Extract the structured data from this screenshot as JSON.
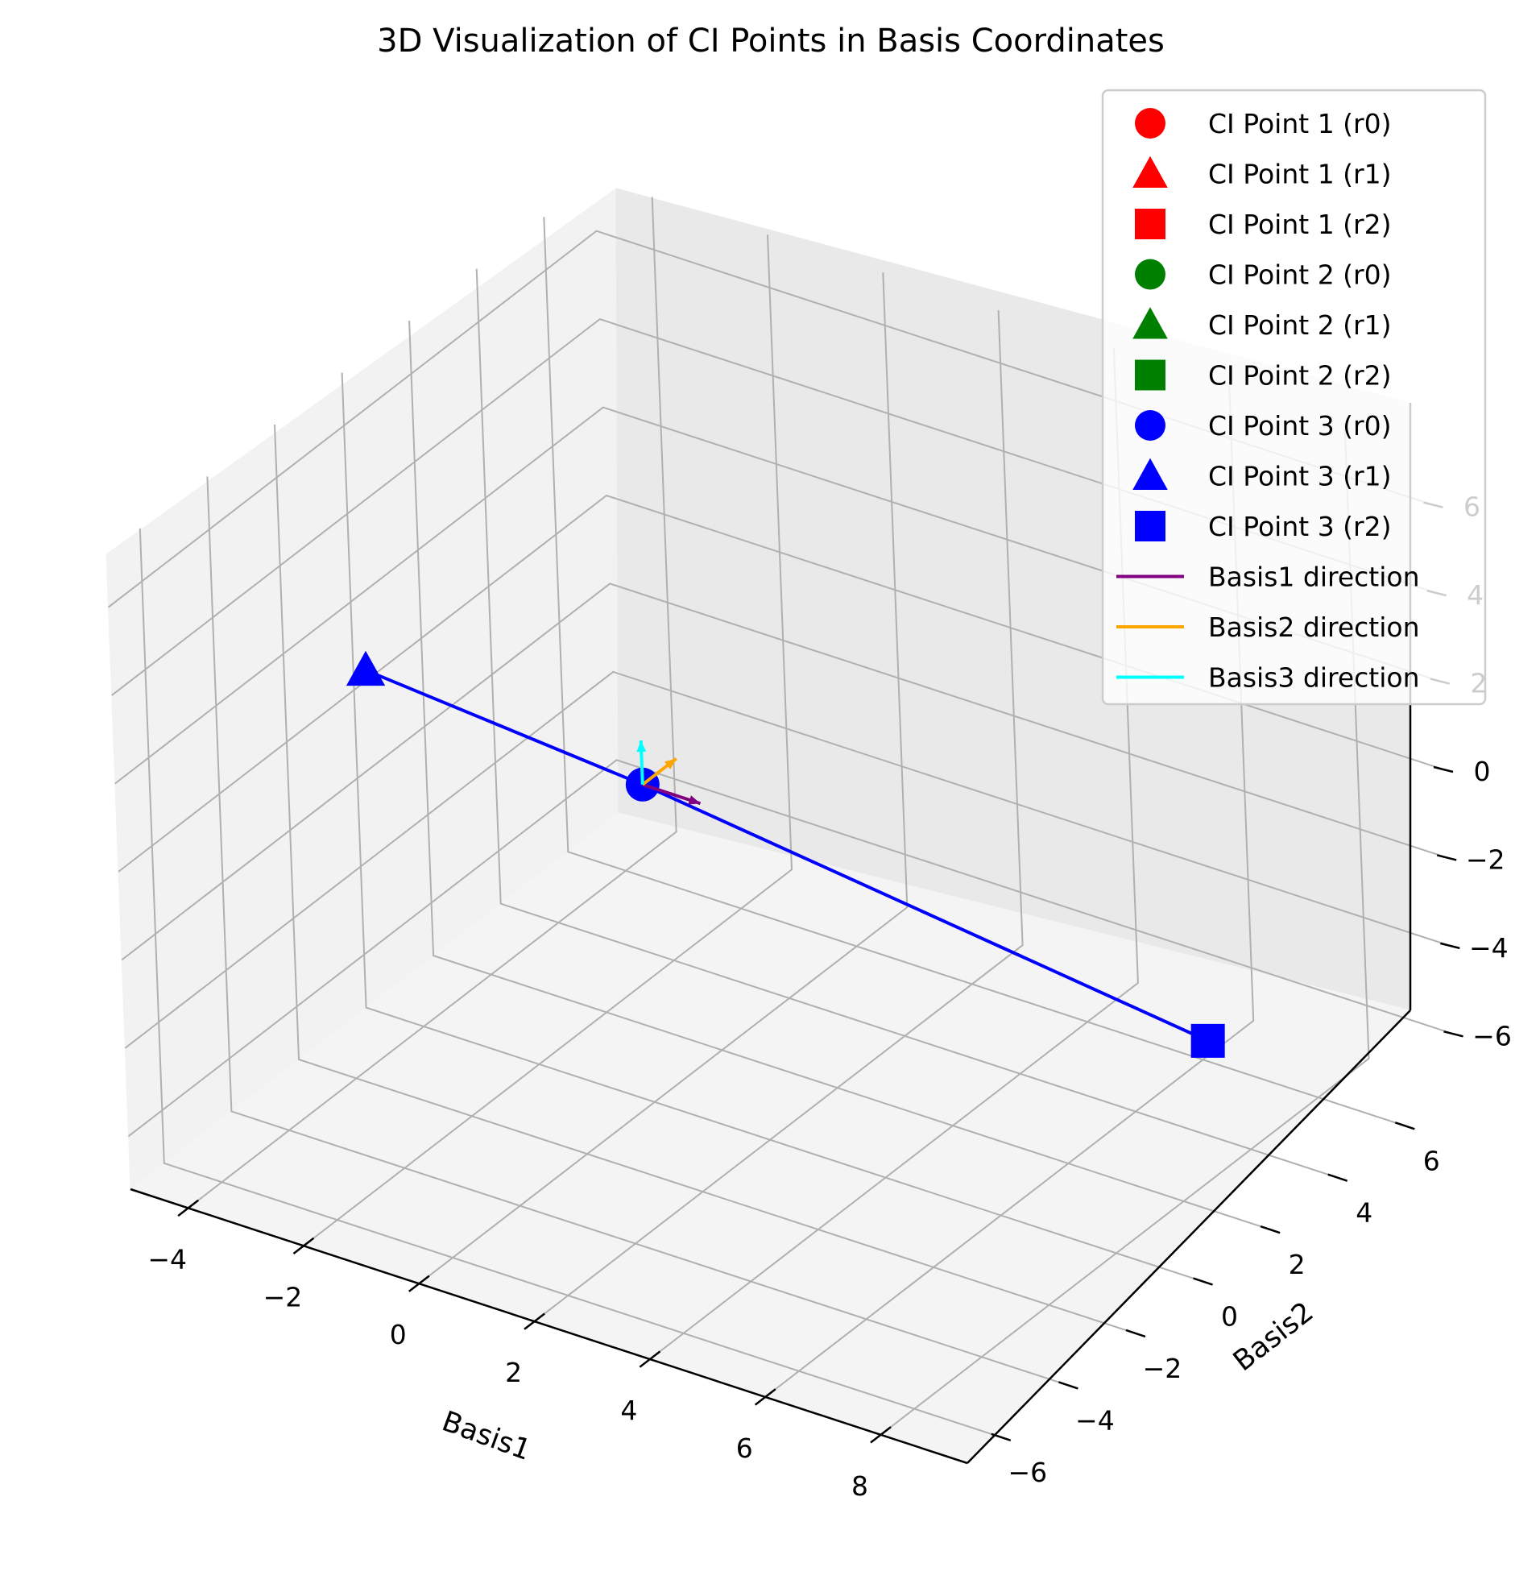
{
  "chart_data": {
    "type": "scatter",
    "title": "3D Visualization of CI Points in Basis Coordinates",
    "xlabel": "Basis1",
    "ylabel": "Basis2",
    "zlabel": "",
    "x_ticks": [
      "−4",
      "−2",
      "0",
      "2",
      "4",
      "6",
      "8"
    ],
    "y_ticks": [
      "−6",
      "−4",
      "−2",
      "0",
      "2",
      "4",
      "6"
    ],
    "z_ticks": [
      "−6",
      "−4",
      "−2",
      "0",
      "2",
      "4",
      "6"
    ],
    "xlim": [
      -5,
      9.5
    ],
    "ylim": [
      -7,
      7.5
    ],
    "zlim": [
      -7.2,
      7.2
    ],
    "grid": true,
    "legend_position": "top-right",
    "series": [
      {
        "name": "CI Point 1 (r0)",
        "marker": "circle",
        "color": "#ff0000",
        "points": []
      },
      {
        "name": "CI Point 1 (r1)",
        "marker": "triangle",
        "color": "#ff0000",
        "points": []
      },
      {
        "name": "CI Point 1 (r2)",
        "marker": "square",
        "color": "#ff0000",
        "points": []
      },
      {
        "name": "CI Point 2 (r0)",
        "marker": "circle",
        "color": "#008000",
        "points": []
      },
      {
        "name": "CI Point 2 (r1)",
        "marker": "triangle",
        "color": "#008000",
        "points": []
      },
      {
        "name": "CI Point 2 (r2)",
        "marker": "square",
        "color": "#008000",
        "points": []
      },
      {
        "name": "CI Point 3 (r0)",
        "marker": "circle",
        "color": "#0000ff",
        "points": [
          [
            0,
            0,
            0
          ]
        ]
      },
      {
        "name": "CI Point 3 (r1)",
        "marker": "triangle",
        "color": "#0000ff",
        "points": [
          [
            -4.6,
            -0.3,
            0.8
          ]
        ]
      },
      {
        "name": "CI Point 3 (r2)",
        "marker": "square",
        "color": "#0000ff",
        "points": [
          [
            9.2,
            0.9,
            -2.4
          ]
        ]
      }
    ],
    "lines": [
      {
        "color": "#0000ff",
        "points": [
          [
            -4.6,
            -0.3,
            0.8
          ],
          [
            0,
            0,
            0
          ],
          [
            9.2,
            0.9,
            -2.4
          ]
        ]
      }
    ],
    "basis_vectors": [
      {
        "name": "Basis1 direction",
        "color": "#800080",
        "from": [
          0,
          0,
          0
        ],
        "to": [
          1,
          0,
          0
        ]
      },
      {
        "name": "Basis2 direction",
        "color": "#ffa500",
        "from": [
          0,
          0,
          0
        ],
        "to": [
          0,
          1,
          0
        ]
      },
      {
        "name": "Basis3 direction",
        "color": "#00ffff",
        "from": [
          0,
          0,
          0
        ],
        "to": [
          0,
          0,
          1
        ]
      }
    ]
  }
}
